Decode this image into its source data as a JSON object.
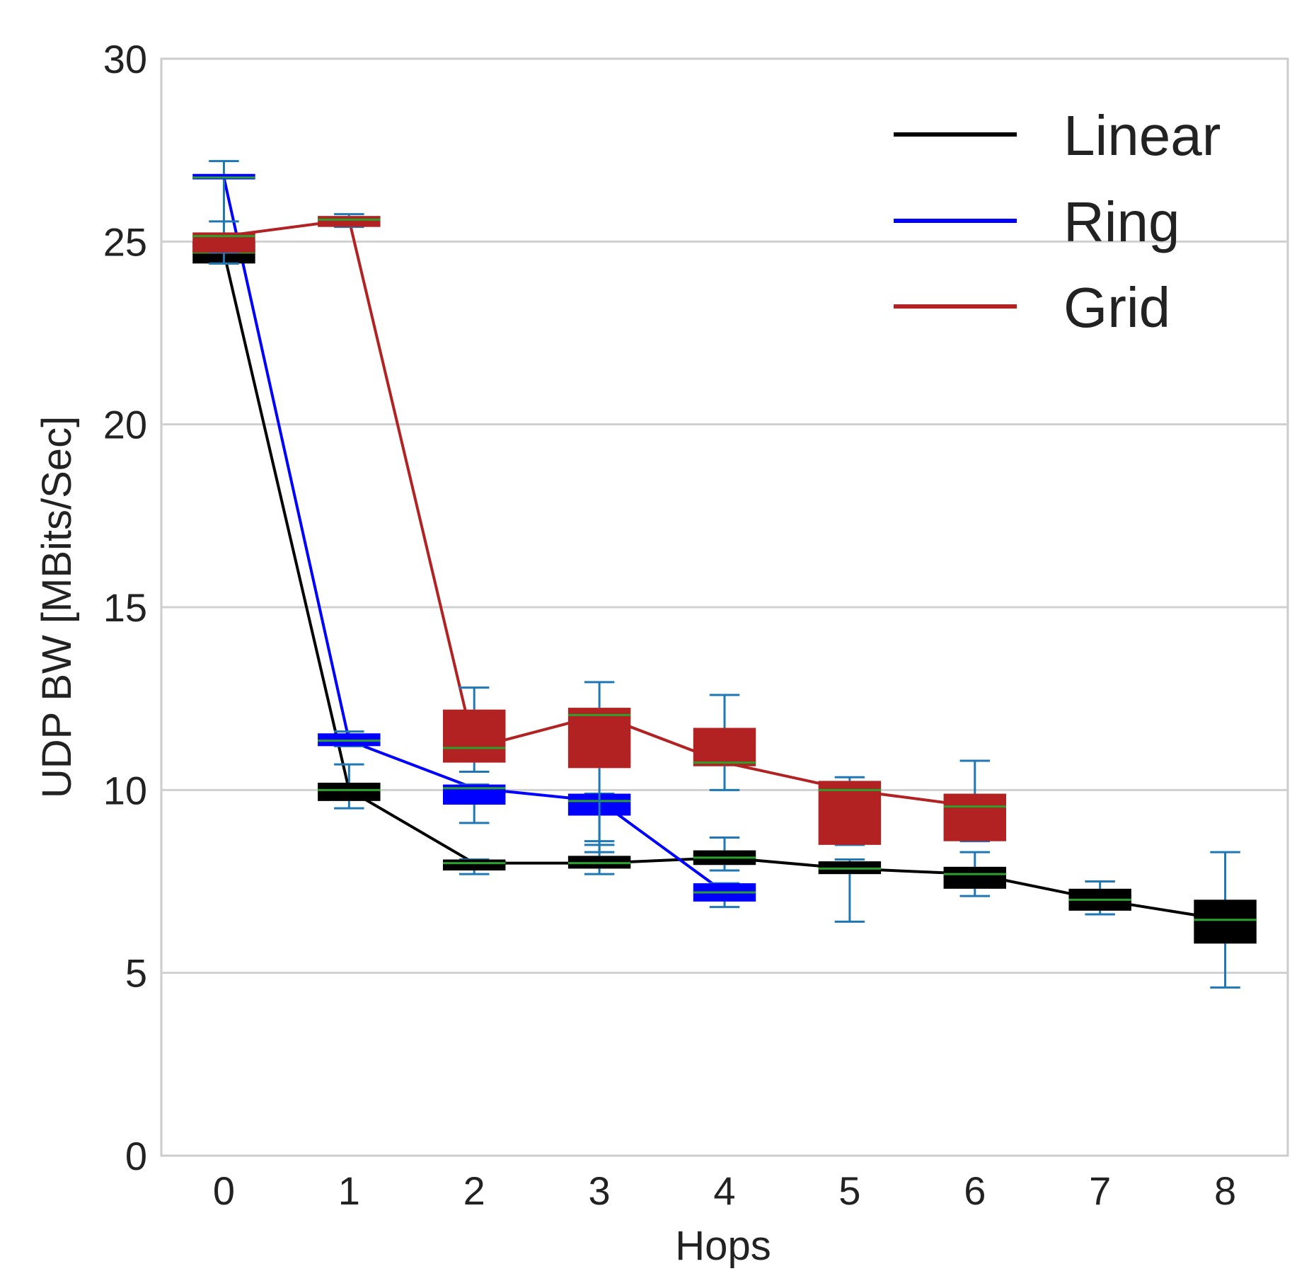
{
  "chart_data": {
    "type": "box",
    "title": "",
    "xlabel": "Hops",
    "ylabel": "UDP BW  [MBits/Sec]",
    "x_ticks": [
      "0",
      "1",
      "2",
      "3",
      "4",
      "5",
      "6",
      "7",
      "8"
    ],
    "y_ticks": [
      "0",
      "5",
      "10",
      "15",
      "20",
      "25",
      "30"
    ],
    "xlim": [
      -0.5,
      8.5
    ],
    "ylim": [
      0,
      30
    ],
    "grid": true,
    "legend_position": "top-right",
    "whisker_color": "#1f77b4",
    "median_color": "#2ca02c",
    "series": [
      {
        "name": "Linear",
        "color": "#000000",
        "boxes": [
          {
            "x": 0,
            "q1": 24.4,
            "median": 24.7,
            "q3": 25.0,
            "whislo": 24.4,
            "whishi": 25.0
          },
          {
            "x": 1,
            "q1": 9.7,
            "median": 10.0,
            "q3": 10.2,
            "whislo": 9.5,
            "whishi": 10.7
          },
          {
            "x": 2,
            "q1": 7.8,
            "median": 8.0,
            "q3": 8.1,
            "whislo": 7.7,
            "whishi": 8.1
          },
          {
            "x": 3,
            "q1": 7.85,
            "median": 8.0,
            "q3": 8.2,
            "whislo": 7.7,
            "whishi": 8.5
          },
          {
            "x": 4,
            "q1": 7.95,
            "median": 8.15,
            "q3": 8.35,
            "whislo": 7.8,
            "whishi": 8.7
          },
          {
            "x": 5,
            "q1": 7.7,
            "median": 7.85,
            "q3": 8.05,
            "whislo": 6.4,
            "whishi": 8.1
          },
          {
            "x": 6,
            "q1": 7.3,
            "median": 7.7,
            "q3": 7.9,
            "whislo": 7.1,
            "whishi": 8.3
          },
          {
            "x": 7,
            "q1": 6.7,
            "median": 7.0,
            "q3": 7.3,
            "whislo": 6.6,
            "whishi": 7.5
          },
          {
            "x": 8,
            "q1": 5.8,
            "median": 6.45,
            "q3": 7.0,
            "whislo": 4.6,
            "whishi": 8.3
          }
        ]
      },
      {
        "name": "Ring",
        "color": "#0000ff",
        "boxes": [
          {
            "x": 0,
            "q1": 26.7,
            "median": 26.75,
            "q3": 26.85,
            "whislo": 24.4,
            "whishi": 27.2
          },
          {
            "x": 1,
            "q1": 11.2,
            "median": 11.35,
            "q3": 11.55,
            "whislo": 11.2,
            "whishi": 11.6
          },
          {
            "x": 2,
            "q1": 9.6,
            "median": 10.05,
            "q3": 10.15,
            "whislo": 9.1,
            "whishi": 10.15
          },
          {
            "x": 3,
            "q1": 9.3,
            "median": 9.7,
            "q3": 9.9,
            "whislo": 8.6,
            "whishi": 9.9
          },
          {
            "x": 4,
            "q1": 6.95,
            "median": 7.2,
            "q3": 7.45,
            "whislo": 6.8,
            "whishi": 7.45
          }
        ]
      },
      {
        "name": "Grid",
        "color": "#b22222",
        "boxes": [
          {
            "x": 0,
            "q1": 24.7,
            "median": 25.15,
            "q3": 25.25,
            "whislo": 24.7,
            "whishi": 25.55
          },
          {
            "x": 1,
            "q1": 25.4,
            "median": 25.6,
            "q3": 25.7,
            "whislo": 25.4,
            "whishi": 25.75
          },
          {
            "x": 2,
            "q1": 10.75,
            "median": 11.15,
            "q3": 12.2,
            "whislo": 10.5,
            "whishi": 12.8
          },
          {
            "x": 3,
            "q1": 10.6,
            "median": 12.05,
            "q3": 12.25,
            "whislo": 8.3,
            "whishi": 12.95
          },
          {
            "x": 4,
            "q1": 10.65,
            "median": 10.75,
            "q3": 11.7,
            "whislo": 10.0,
            "whishi": 12.6
          },
          {
            "x": 5,
            "q1": 8.5,
            "median": 10.0,
            "q3": 10.25,
            "whislo": 8.5,
            "whishi": 10.35
          },
          {
            "x": 6,
            "q1": 8.6,
            "median": 9.55,
            "q3": 9.9,
            "whislo": 8.6,
            "whishi": 10.8
          }
        ]
      }
    ]
  }
}
